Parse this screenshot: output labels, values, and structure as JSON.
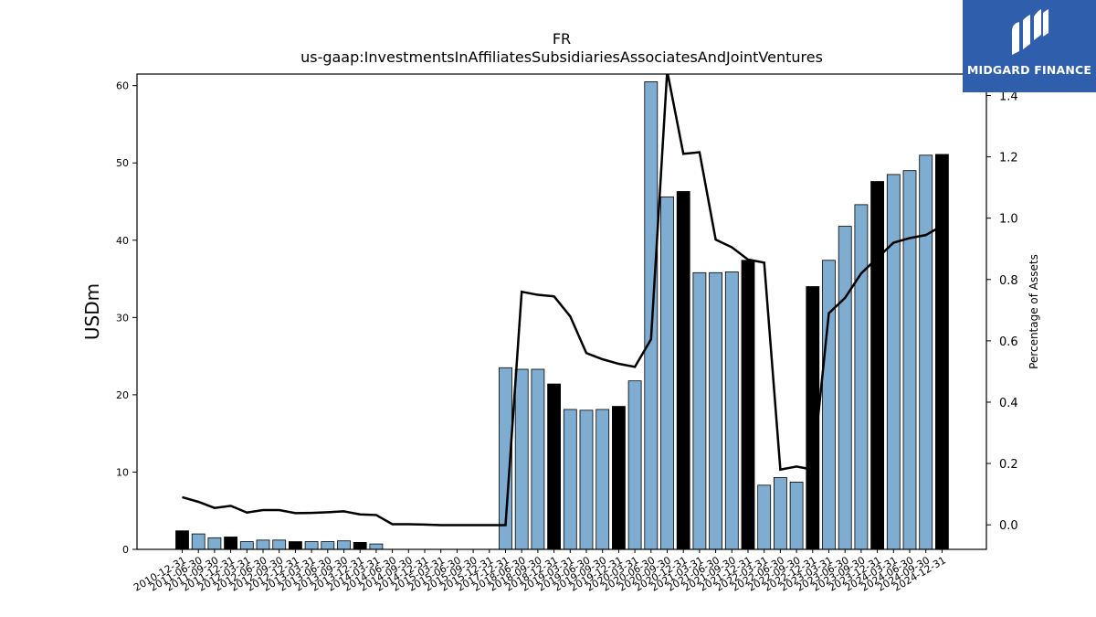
{
  "chart_data": {
    "type": "bar",
    "title": "FR",
    "subtitle": "us-gaap:InvestmentsInAffiliatesSubsidiariesAssociatesAndJointVentures",
    "ylabel": "USDm",
    "y2label": "Percentage of Assets",
    "ylim": [
      0,
      61.5
    ],
    "y2lim": [
      -0.08,
      1.47
    ],
    "yticks": [
      "0",
      "10",
      "20",
      "30",
      "40",
      "50",
      "60"
    ],
    "y2ticks": [
      "0.0",
      "0.2",
      "0.4",
      "0.6",
      "0.8",
      "1.0",
      "1.2",
      "1.4"
    ],
    "categories": [
      "2010-12-31",
      "2011-06-30",
      "2011-09-30",
      "2011-12-31",
      "2012-03-31",
      "2012-06-30",
      "2012-09-30",
      "2012-12-31",
      "2013-03-31",
      "2013-06-30",
      "2013-09-30",
      "2013-12-31",
      "2014-03-31",
      "2014-06-30",
      "2014-09-30",
      "2014-12-31",
      "2015-03-31",
      "2015-06-30",
      "2015-09-30",
      "2015-12-31",
      "2017-12-31",
      "2018-06-30",
      "2018-09-30",
      "2018-12-31",
      "2019-03-31",
      "2019-06-30",
      "2019-09-30",
      "2019-12-31",
      "2020-03-31",
      "2020-06-30",
      "2020-09-30",
      "2020-12-31",
      "2021-03-31",
      "2021-06-30",
      "2021-09-30",
      "2021-12-31",
      "2022-03-31",
      "2022-06-30",
      "2022-09-30",
      "2022-12-31",
      "2023-03-31",
      "2023-06-30",
      "2023-09-30",
      "2023-12-31",
      "2024-03-31",
      "2024-06-30",
      "2024-09-30",
      "2024-12-31"
    ],
    "series": [
      {
        "type": "bar",
        "values": [
          2.4,
          2.0,
          1.5,
          1.6,
          1.0,
          1.2,
          1.2,
          1.0,
          1.0,
          1.0,
          1.1,
          0.9,
          0.7,
          0,
          0,
          0,
          0,
          0,
          0,
          0,
          23.5,
          23.3,
          23.3,
          21.4,
          18.1,
          18.0,
          18.1,
          18.5,
          21.8,
          60.5,
          45.6,
          46.3,
          35.8,
          35.8,
          35.9,
          37.4,
          8.3,
          9.3,
          8.7,
          34.0,
          37.4,
          41.8,
          44.6,
          47.6,
          48.5,
          49.0,
          51.0,
          51.1
        ]
      },
      {
        "type": "line",
        "axis": "y2",
        "values": [
          0.09,
          0.075,
          0.055,
          0.062,
          0.04,
          0.048,
          0.048,
          0.038,
          0.039,
          0.041,
          0.044,
          0.034,
          0.032,
          0.002,
          0.002,
          0.001,
          -0.001,
          -0.001,
          -0.001,
          -0.001,
          -0.001,
          0.76,
          0.75,
          0.745,
          0.68,
          0.56,
          0.54,
          0.525,
          0.515,
          0.605,
          1.48,
          1.21,
          1.215,
          0.93,
          0.905,
          0.865,
          0.855,
          0.18,
          0.19,
          0.18,
          0.69,
          0.74,
          0.82,
          0.87,
          0.92,
          0.935,
          0.945,
          0.975
        ]
      }
    ],
    "annual_bars": [
      "2010-12-31",
      "2011-12-31",
      "2012-12-31",
      "2013-12-31",
      "2018-12-31",
      "2019-12-31",
      "2020-12-31",
      "2021-12-31",
      "2022-12-31",
      "2023-12-31",
      "2024-12-31"
    ],
    "colors": {
      "bar": "#7eadd1",
      "annual_bar": "#000000",
      "line": "#000000"
    },
    "grid": false,
    "legend": "none"
  },
  "logo": {
    "text": "MIDGARD FINANCE",
    "background": "#2f5ead"
  }
}
